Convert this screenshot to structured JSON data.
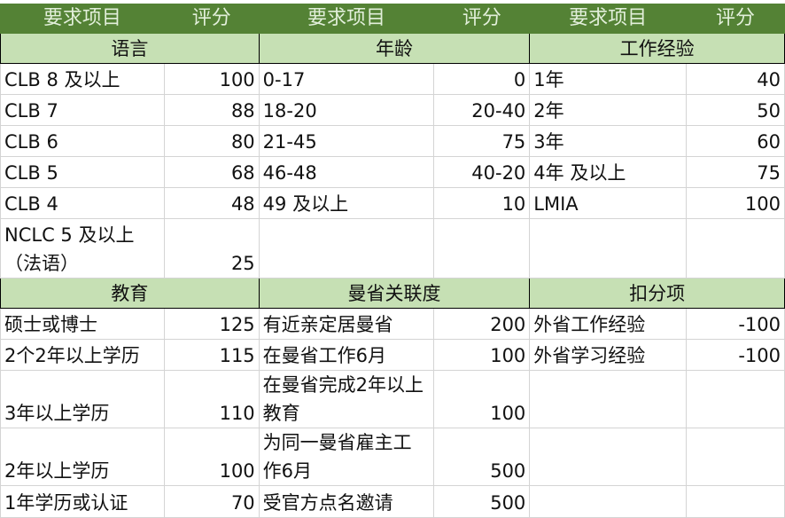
{
  "header": [
    "要求项目",
    "评分",
    "要求项目",
    "评分",
    "要求项目",
    "评分"
  ],
  "blocks": [
    {
      "sections": [
        "语言",
        "年龄",
        "工作经验"
      ],
      "rows": [
        [
          [
            "CLB 8 及以上",
            "100"
          ],
          [
            "0-17",
            "0"
          ],
          [
            "1年",
            "40"
          ]
        ],
        [
          [
            "CLB 7",
            "88"
          ],
          [
            "18-20",
            "20-40"
          ],
          [
            "2年",
            "50"
          ]
        ],
        [
          [
            "CLB 6",
            "80"
          ],
          [
            "21-45",
            "75"
          ],
          [
            "3年",
            "60"
          ]
        ],
        [
          [
            "CLB 5",
            "68"
          ],
          [
            "46-48",
            "40-20"
          ],
          [
            "4年 及以上",
            "75"
          ]
        ],
        [
          [
            "CLB 4",
            "48"
          ],
          [
            "49 及以上",
            "10"
          ],
          [
            "LMIA",
            "100"
          ]
        ],
        [
          [
            "NCLC 5 及以上（法语）",
            "25"
          ],
          [
            "",
            ""
          ],
          [
            "",
            ""
          ]
        ]
      ]
    },
    {
      "sections": [
        "教育",
        "曼省关联度",
        "扣分项"
      ],
      "rows": [
        [
          [
            "硕士或博士",
            "125"
          ],
          [
            "有近亲定居曼省",
            "200"
          ],
          [
            "外省工作经验",
            "-100"
          ]
        ],
        [
          [
            "2个2年以上学历",
            "115"
          ],
          [
            "在曼省工作6月",
            "100"
          ],
          [
            "外省学习经验",
            "-100"
          ]
        ],
        [
          [
            "3年以上学历",
            "110"
          ],
          [
            "在曼省完成2年以上教育",
            "100"
          ],
          [
            "",
            ""
          ]
        ],
        [
          [
            "2年以上学历",
            "100"
          ],
          [
            "为同一曼省雇主工作6月",
            "500"
          ],
          [
            "",
            ""
          ]
        ],
        [
          [
            "1年学历或认证",
            "70"
          ],
          [
            "受官方点名邀请",
            "500"
          ],
          [
            "",
            ""
          ]
        ]
      ]
    }
  ],
  "colors": {
    "header_bg": "#548235",
    "header_text": "#e2efda",
    "section_bg": "#c6e0b4"
  }
}
